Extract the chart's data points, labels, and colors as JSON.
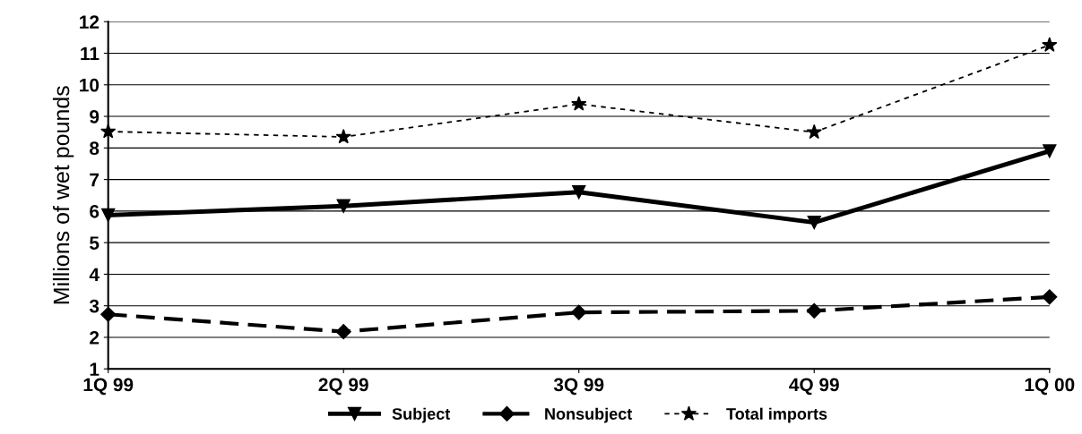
{
  "chart_data": {
    "type": "line",
    "ylabel": "Millions of wet pounds",
    "categories": [
      "1Q 99",
      "2Q 99",
      "3Q 99",
      "4Q 99",
      "1Q 00"
    ],
    "series": [
      {
        "name": "Subject",
        "color": "#000000",
        "marker": "triangle",
        "line_style": "solid",
        "values": [
          5.87,
          6.16,
          6.6,
          5.64,
          7.9
        ]
      },
      {
        "name": "Nonsubject",
        "color": "#000000",
        "marker": "diamond",
        "line_style": "dashed",
        "values": [
          2.73,
          2.18,
          2.79,
          2.84,
          3.28
        ]
      },
      {
        "name": "Total imports",
        "color": "#000000",
        "marker": "star",
        "line_style": "dotted",
        "values": [
          8.52,
          8.35,
          9.39,
          8.5,
          11.26
        ]
      }
    ],
    "ylim": [
      1,
      12
    ],
    "yticks": [
      1,
      2,
      3,
      4,
      5,
      6,
      7,
      8,
      9,
      10,
      11,
      12
    ],
    "grid": "y",
    "legend": "bottom"
  }
}
